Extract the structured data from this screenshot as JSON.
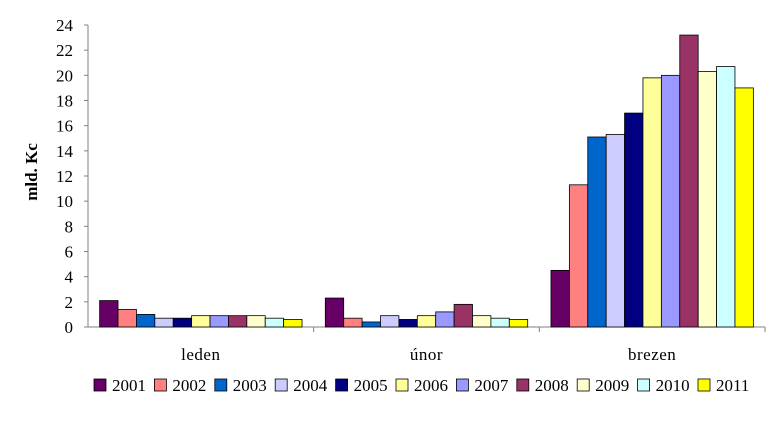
{
  "chart_data": {
    "type": "bar",
    "title": "",
    "xlabel": "",
    "ylabel": "mld. Kc",
    "ylim": [
      0,
      24
    ],
    "yticks": [
      0,
      2,
      4,
      6,
      8,
      10,
      12,
      14,
      16,
      18,
      20,
      22,
      24
    ],
    "grid": false,
    "legend_position": "bottom",
    "categories": [
      "leden",
      "únor",
      "brezen"
    ],
    "series": [
      {
        "name": "2001",
        "color": "#660066",
        "values": [
          2.1,
          2.3,
          4.5
        ]
      },
      {
        "name": "2002",
        "color": "#FF8080",
        "values": [
          1.4,
          0.7,
          11.3
        ]
      },
      {
        "name": "2003",
        "color": "#0066CC",
        "values": [
          1.0,
          0.4,
          15.1
        ]
      },
      {
        "name": "2004",
        "color": "#CCCCFF",
        "values": [
          0.7,
          0.9,
          15.3
        ]
      },
      {
        "name": "2005",
        "color": "#000080",
        "values": [
          0.7,
          0.6,
          17.0
        ]
      },
      {
        "name": "2006",
        "color": "#FFFF99",
        "values": [
          0.9,
          0.9,
          19.8
        ]
      },
      {
        "name": "2007",
        "color": "#9999FF",
        "values": [
          0.9,
          1.2,
          20.0
        ]
      },
      {
        "name": "2008",
        "color": "#993366",
        "values": [
          0.9,
          1.8,
          23.2
        ]
      },
      {
        "name": "2009",
        "color": "#FFFFCC",
        "values": [
          0.9,
          0.9,
          20.3
        ]
      },
      {
        "name": "2010",
        "color": "#CCFFFF",
        "values": [
          0.7,
          0.7,
          20.7
        ]
      },
      {
        "name": "2011",
        "color": "#FFFF00",
        "values": [
          0.6,
          0.6,
          19.0
        ]
      }
    ]
  }
}
